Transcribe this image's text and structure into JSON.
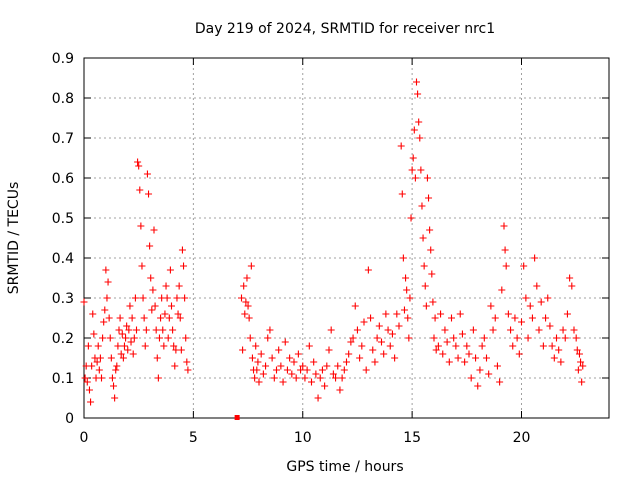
{
  "chart_data": {
    "type": "scatter",
    "title": "Day 219 of 2024, SRMTID for receiver nrc1",
    "xlabel": "GPS time / hours",
    "ylabel": "SRMTID / TECUs",
    "xlim": [
      0,
      24
    ],
    "ylim": [
      0,
      0.9
    ],
    "x_ticks": [
      0,
      5,
      10,
      15,
      20
    ],
    "x_tick_labels": [
      "0",
      "5",
      "10",
      "15",
      "20"
    ],
    "y_ticks": [
      0,
      0.1,
      0.2,
      0.3,
      0.4,
      0.5,
      0.6,
      0.7,
      0.8,
      0.9
    ],
    "y_tick_labels": [
      "0",
      "0.1",
      "0.2",
      "0.3",
      "0.4",
      "0.5",
      "0.6",
      "0.7",
      "0.8",
      "0.9"
    ],
    "grid": true,
    "marker": "+",
    "color": "#ff0000",
    "outlier_square": {
      "x": 7.0,
      "y": 0.0
    },
    "series": [
      {
        "name": "SRMTID",
        "points": [
          [
            0.0,
            0.29
          ],
          [
            0.05,
            0.1
          ],
          [
            0.1,
            0.13
          ],
          [
            0.15,
            0.09
          ],
          [
            0.2,
            0.18
          ],
          [
            0.25,
            0.07
          ],
          [
            0.3,
            0.04
          ],
          [
            0.35,
            0.13
          ],
          [
            0.4,
            0.26
          ],
          [
            0.45,
            0.21
          ],
          [
            0.5,
            0.15
          ],
          [
            0.55,
            0.1
          ],
          [
            0.6,
            0.14
          ],
          [
            0.65,
            0.18
          ],
          [
            0.7,
            0.12
          ],
          [
            0.75,
            0.15
          ],
          [
            0.8,
            0.1
          ],
          [
            0.85,
            0.2
          ],
          [
            0.9,
            0.24
          ],
          [
            0.95,
            0.27
          ],
          [
            1.0,
            0.37
          ],
          [
            1.05,
            0.3
          ],
          [
            1.1,
            0.34
          ],
          [
            1.15,
            0.25
          ],
          [
            1.2,
            0.2
          ],
          [
            1.25,
            0.15
          ],
          [
            1.3,
            0.1
          ],
          [
            1.35,
            0.08
          ],
          [
            1.4,
            0.05
          ],
          [
            1.45,
            0.12
          ],
          [
            1.5,
            0.13
          ],
          [
            1.55,
            0.18
          ],
          [
            1.6,
            0.22
          ],
          [
            1.65,
            0.25
          ],
          [
            1.7,
            0.16
          ],
          [
            1.75,
            0.21
          ],
          [
            1.8,
            0.15
          ],
          [
            1.85,
            0.18
          ],
          [
            1.9,
            0.2
          ],
          [
            1.95,
            0.23
          ],
          [
            2.0,
            0.17
          ],
          [
            2.05,
            0.22
          ],
          [
            2.1,
            0.28
          ],
          [
            2.15,
            0.19
          ],
          [
            2.2,
            0.25
          ],
          [
            2.25,
            0.16
          ],
          [
            2.3,
            0.2
          ],
          [
            2.35,
            0.3
          ],
          [
            2.4,
            0.22
          ],
          [
            2.45,
            0.64
          ],
          [
            2.5,
            0.63
          ],
          [
            2.55,
            0.57
          ],
          [
            2.6,
            0.48
          ],
          [
            2.65,
            0.38
          ],
          [
            2.7,
            0.3
          ],
          [
            2.75,
            0.25
          ],
          [
            2.8,
            0.18
          ],
          [
            2.85,
            0.22
          ],
          [
            2.9,
            0.61
          ],
          [
            2.95,
            0.56
          ],
          [
            3.0,
            0.43
          ],
          [
            3.05,
            0.35
          ],
          [
            3.1,
            0.27
          ],
          [
            3.15,
            0.32
          ],
          [
            3.2,
            0.47
          ],
          [
            3.25,
            0.28
          ],
          [
            3.3,
            0.22
          ],
          [
            3.35,
            0.15
          ],
          [
            3.4,
            0.1
          ],
          [
            3.45,
            0.2
          ],
          [
            3.5,
            0.25
          ],
          [
            3.55,
            0.3
          ],
          [
            3.6,
            0.22
          ],
          [
            3.65,
            0.18
          ],
          [
            3.7,
            0.26
          ],
          [
            3.75,
            0.33
          ],
          [
            3.8,
            0.3
          ],
          [
            3.85,
            0.2
          ],
          [
            3.9,
            0.25
          ],
          [
            3.95,
            0.37
          ],
          [
            4.0,
            0.28
          ],
          [
            4.05,
            0.22
          ],
          [
            4.1,
            0.18
          ],
          [
            4.15,
            0.13
          ],
          [
            4.2,
            0.17
          ],
          [
            4.25,
            0.3
          ],
          [
            4.3,
            0.26
          ],
          [
            4.35,
            0.33
          ],
          [
            4.4,
            0.25
          ],
          [
            4.45,
            0.17
          ],
          [
            4.5,
            0.42
          ],
          [
            4.55,
            0.38
          ],
          [
            4.6,
            0.3
          ],
          [
            4.65,
            0.2
          ],
          [
            4.7,
            0.14
          ],
          [
            4.75,
            0.12
          ],
          [
            7.2,
            0.3
          ],
          [
            7.25,
            0.17
          ],
          [
            7.3,
            0.33
          ],
          [
            7.35,
            0.26
          ],
          [
            7.4,
            0.29
          ],
          [
            7.45,
            0.35
          ],
          [
            7.5,
            0.28
          ],
          [
            7.55,
            0.25
          ],
          [
            7.6,
            0.2
          ],
          [
            7.65,
            0.38
          ],
          [
            7.7,
            0.15
          ],
          [
            7.75,
            0.12
          ],
          [
            7.8,
            0.1
          ],
          [
            7.85,
            0.18
          ],
          [
            7.9,
            0.12
          ],
          [
            7.95,
            0.14
          ],
          [
            8.0,
            0.09
          ],
          [
            8.1,
            0.16
          ],
          [
            8.2,
            0.11
          ],
          [
            8.3,
            0.13
          ],
          [
            8.4,
            0.2
          ],
          [
            8.5,
            0.22
          ],
          [
            8.6,
            0.15
          ],
          [
            8.7,
            0.1
          ],
          [
            8.8,
            0.12
          ],
          [
            8.9,
            0.17
          ],
          [
            9.0,
            0.13
          ],
          [
            9.1,
            0.09
          ],
          [
            9.2,
            0.19
          ],
          [
            9.3,
            0.12
          ],
          [
            9.4,
            0.15
          ],
          [
            9.5,
            0.11
          ],
          [
            9.6,
            0.14
          ],
          [
            9.7,
            0.1
          ],
          [
            9.8,
            0.16
          ],
          [
            9.9,
            0.12
          ],
          [
            10.0,
            0.13
          ],
          [
            10.1,
            0.1
          ],
          [
            10.2,
            0.12
          ],
          [
            10.3,
            0.18
          ],
          [
            10.4,
            0.09
          ],
          [
            10.5,
            0.14
          ],
          [
            10.6,
            0.11
          ],
          [
            10.7,
            0.05
          ],
          [
            10.8,
            0.1
          ],
          [
            10.9,
            0.12
          ],
          [
            11.0,
            0.08
          ],
          [
            11.1,
            0.13
          ],
          [
            11.2,
            0.17
          ],
          [
            11.3,
            0.22
          ],
          [
            11.4,
            0.11
          ],
          [
            11.5,
            0.1
          ],
          [
            11.6,
            0.13
          ],
          [
            11.7,
            0.07
          ],
          [
            11.8,
            0.1
          ],
          [
            11.9,
            0.12
          ],
          [
            12.0,
            0.14
          ],
          [
            12.1,
            0.16
          ],
          [
            12.2,
            0.19
          ],
          [
            12.3,
            0.2
          ],
          [
            12.4,
            0.28
          ],
          [
            12.5,
            0.22
          ],
          [
            12.6,
            0.15
          ],
          [
            12.7,
            0.18
          ],
          [
            12.8,
            0.24
          ],
          [
            12.9,
            0.12
          ],
          [
            13.0,
            0.37
          ],
          [
            13.1,
            0.25
          ],
          [
            13.2,
            0.17
          ],
          [
            13.3,
            0.14
          ],
          [
            13.4,
            0.2
          ],
          [
            13.5,
            0.23
          ],
          [
            13.6,
            0.19
          ],
          [
            13.7,
            0.16
          ],
          [
            13.8,
            0.26
          ],
          [
            13.9,
            0.22
          ],
          [
            14.0,
            0.18
          ],
          [
            14.1,
            0.21
          ],
          [
            14.2,
            0.15
          ],
          [
            14.3,
            0.26
          ],
          [
            14.4,
            0.23
          ],
          [
            14.5,
            0.68
          ],
          [
            14.55,
            0.56
          ],
          [
            14.6,
            0.4
          ],
          [
            14.65,
            0.27
          ],
          [
            14.7,
            0.35
          ],
          [
            14.75,
            0.32
          ],
          [
            14.8,
            0.25
          ],
          [
            14.85,
            0.2
          ],
          [
            14.9,
            0.3
          ],
          [
            14.95,
            0.5
          ],
          [
            15.0,
            0.62
          ],
          [
            15.05,
            0.65
          ],
          [
            15.1,
            0.72
          ],
          [
            15.15,
            0.6
          ],
          [
            15.2,
            0.84
          ],
          [
            15.25,
            0.81
          ],
          [
            15.3,
            0.74
          ],
          [
            15.35,
            0.7
          ],
          [
            15.4,
            0.62
          ],
          [
            15.45,
            0.53
          ],
          [
            15.5,
            0.45
          ],
          [
            15.55,
            0.38
          ],
          [
            15.6,
            0.33
          ],
          [
            15.65,
            0.28
          ],
          [
            15.7,
            0.6
          ],
          [
            15.75,
            0.55
          ],
          [
            15.8,
            0.47
          ],
          [
            15.85,
            0.42
          ],
          [
            15.9,
            0.36
          ],
          [
            15.95,
            0.29
          ],
          [
            16.0,
            0.2
          ],
          [
            16.05,
            0.25
          ],
          [
            16.1,
            0.17
          ],
          [
            16.2,
            0.18
          ],
          [
            16.3,
            0.26
          ],
          [
            16.4,
            0.16
          ],
          [
            16.5,
            0.22
          ],
          [
            16.6,
            0.19
          ],
          [
            16.7,
            0.14
          ],
          [
            16.8,
            0.25
          ],
          [
            16.9,
            0.2
          ],
          [
            17.0,
            0.18
          ],
          [
            17.1,
            0.15
          ],
          [
            17.2,
            0.26
          ],
          [
            17.3,
            0.21
          ],
          [
            17.4,
            0.14
          ],
          [
            17.5,
            0.18
          ],
          [
            17.6,
            0.16
          ],
          [
            17.7,
            0.1
          ],
          [
            17.8,
            0.22
          ],
          [
            17.9,
            0.15
          ],
          [
            18.0,
            0.08
          ],
          [
            18.1,
            0.12
          ],
          [
            18.2,
            0.18
          ],
          [
            18.3,
            0.2
          ],
          [
            18.4,
            0.15
          ],
          [
            18.5,
            0.11
          ],
          [
            18.6,
            0.28
          ],
          [
            18.7,
            0.22
          ],
          [
            18.8,
            0.25
          ],
          [
            18.9,
            0.13
          ],
          [
            19.0,
            0.09
          ],
          [
            19.1,
            0.32
          ],
          [
            19.2,
            0.48
          ],
          [
            19.25,
            0.42
          ],
          [
            19.3,
            0.38
          ],
          [
            19.4,
            0.26
          ],
          [
            19.5,
            0.22
          ],
          [
            19.6,
            0.18
          ],
          [
            19.7,
            0.25
          ],
          [
            19.8,
            0.2
          ],
          [
            19.9,
            0.16
          ],
          [
            20.0,
            0.24
          ],
          [
            20.1,
            0.38
          ],
          [
            20.2,
            0.3
          ],
          [
            20.3,
            0.2
          ],
          [
            20.4,
            0.28
          ],
          [
            20.5,
            0.25
          ],
          [
            20.6,
            0.4
          ],
          [
            20.7,
            0.33
          ],
          [
            20.8,
            0.22
          ],
          [
            20.9,
            0.29
          ],
          [
            21.0,
            0.18
          ],
          [
            21.1,
            0.25
          ],
          [
            21.2,
            0.3
          ],
          [
            21.3,
            0.23
          ],
          [
            21.4,
            0.18
          ],
          [
            21.5,
            0.15
          ],
          [
            21.6,
            0.2
          ],
          [
            21.7,
            0.17
          ],
          [
            21.8,
            0.14
          ],
          [
            21.9,
            0.22
          ],
          [
            22.0,
            0.2
          ],
          [
            22.1,
            0.26
          ],
          [
            22.2,
            0.35
          ],
          [
            22.3,
            0.33
          ],
          [
            22.4,
            0.22
          ],
          [
            22.5,
            0.2
          ],
          [
            22.55,
            0.17
          ],
          [
            22.6,
            0.12
          ],
          [
            22.65,
            0.16
          ],
          [
            22.7,
            0.14
          ],
          [
            22.75,
            0.09
          ],
          [
            22.8,
            0.13
          ]
        ]
      }
    ]
  }
}
